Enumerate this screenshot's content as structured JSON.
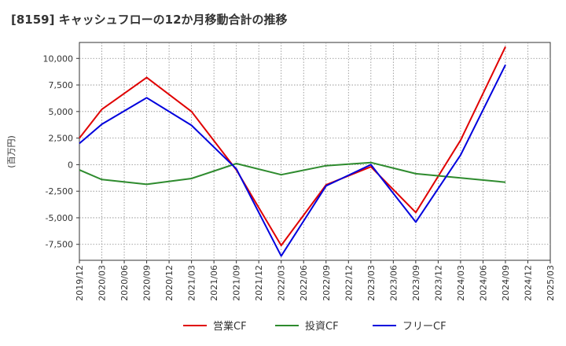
{
  "title": "[8159]  キャッシュフローの12か月移動合計の推移",
  "chart_data": {
    "type": "line",
    "title": "[8159]  キャッシュフローの12か月移動合計の推移",
    "ylabel": "(百万円)",
    "xlabel": "",
    "ylim": [
      -9000,
      11500
    ],
    "yticks": [
      10000,
      7500,
      5000,
      2500,
      0,
      -2500,
      -5000,
      -7500
    ],
    "ytick_labels": [
      "10,000",
      "7,500",
      "5,000",
      "2,500",
      "0",
      "-2,500",
      "-5,000",
      "-7,500"
    ],
    "categories": [
      "2019/12",
      "2020/03",
      "2020/06",
      "2020/09",
      "2020/12",
      "2021/03",
      "2021/06",
      "2021/09",
      "2021/12",
      "2022/03",
      "2022/06",
      "2022/09",
      "2022/12",
      "2023/03",
      "2023/06",
      "2023/09",
      "2023/12",
      "2024/03",
      "2024/06",
      "2024/09",
      "2024/12",
      "2025/03"
    ],
    "series": [
      {
        "name": "営業CF",
        "color": "#e00000",
        "values": [
          2500,
          5200,
          null,
          8200,
          null,
          5000,
          null,
          -500,
          null,
          -7600,
          null,
          -1900,
          null,
          -200,
          null,
          -4500,
          null,
          2300,
          null,
          11100,
          null,
          null
        ]
      },
      {
        "name": "投資CF",
        "color": "#2e8b2e",
        "values": [
          -500,
          -1400,
          null,
          -1850,
          null,
          -1300,
          null,
          100,
          null,
          -950,
          null,
          -100,
          null,
          200,
          null,
          -850,
          null,
          -1250,
          null,
          -1650,
          null,
          null
        ]
      },
      {
        "name": "フリーCF",
        "color": "#0000dd",
        "values": [
          2000,
          3800,
          null,
          6300,
          null,
          3700,
          null,
          -400,
          null,
          -8600,
          null,
          -2000,
          null,
          0,
          null,
          -5400,
          null,
          900,
          null,
          9400,
          null,
          null
        ]
      }
    ],
    "legend": [
      {
        "label": "営業CF",
        "color": "#e00000"
      },
      {
        "label": "投資CF",
        "color": "#2e8b2e"
      },
      {
        "label": "フリーCF",
        "color": "#0000dd"
      }
    ],
    "legend_position": "bottom",
    "grid": true
  }
}
